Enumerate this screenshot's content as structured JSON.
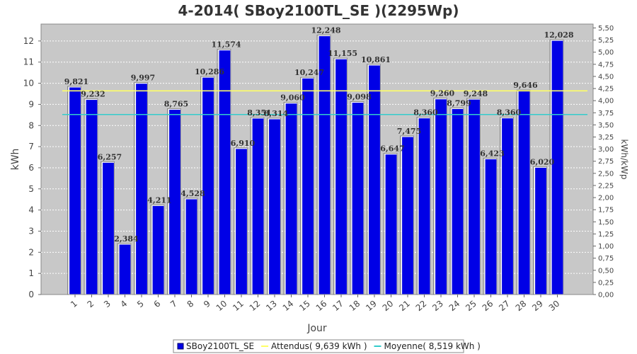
{
  "chart_data": {
    "type": "bar",
    "title": "4-2014( SBoy2100TL_SE )(2295Wp)",
    "xlabel": "Jour",
    "ylabel": "kWh",
    "ylabel_right": "kWh/kWp",
    "ylim": [
      0,
      12.8
    ],
    "yticks": [
      "0",
      "1",
      "2",
      "3",
      "4",
      "5",
      "6",
      "7",
      "8",
      "9",
      "10",
      "11",
      "12"
    ],
    "ylim_right": [
      0,
      5.58
    ],
    "yticks_right": [
      "0,00",
      "0,25",
      "0,50",
      "0,75",
      "1,00",
      "1,25",
      "1,50",
      "1,75",
      "2,00",
      "2,25",
      "2,50",
      "2,75",
      "3,00",
      "3,25",
      "3,50",
      "3,75",
      "4,00",
      "4,25",
      "4,50",
      "4,75",
      "5,00",
      "5,25",
      "5,50"
    ],
    "categories": [
      "1",
      "2",
      "3",
      "4",
      "5",
      "6",
      "7",
      "8",
      "9",
      "10",
      "11",
      "12",
      "13",
      "14",
      "15",
      "16",
      "17",
      "18",
      "19",
      "20",
      "21",
      "22",
      "23",
      "24",
      "25",
      "26",
      "27",
      "28",
      "29",
      "30"
    ],
    "series": [
      {
        "name": "SBoy2100TL_SE",
        "color": "#0000e6",
        "values": [
          9.821,
          9.232,
          6.257,
          2.384,
          9.997,
          4.211,
          8.765,
          4.528,
          10.286,
          11.574,
          6.91,
          8.351,
          8.314,
          9.06,
          10.247,
          12.248,
          11.155,
          9.098,
          10.861,
          6.647,
          7.475,
          8.36,
          9.26,
          8.799,
          9.248,
          6.423,
          8.36,
          9.646,
          6.02,
          12.028
        ],
        "labels": [
          "9,821",
          "9,232",
          "6,257",
          "2,384",
          "9,997",
          "4,211",
          "8,765",
          "4,528",
          "10,286",
          "11,574",
          "6,910",
          "8,351",
          "8,314",
          "9,060",
          "10,247",
          "12,248",
          "11,155",
          "9,098",
          "10,861",
          "6,647",
          "7,475",
          "8,360",
          "9,260",
          "8,799",
          "9,248",
          "6,423",
          "8,360",
          "9,646",
          "6,020",
          "12,028"
        ]
      }
    ],
    "reference_lines": [
      {
        "name": "Attendus",
        "value": 9.639,
        "color": "#ffff66"
      },
      {
        "name": "Moyenne",
        "value": 8.519,
        "color": "#33cccc"
      }
    ],
    "legend": [
      {
        "text": "SBoy2100TL_SE",
        "color": "#0000e6",
        "kind": "box"
      },
      {
        "text": "Attendus( 9,639 kWh )",
        "color": "#ffff66",
        "kind": "line"
      },
      {
        "text": "Moyenne( 8,519 kWh )",
        "color": "#33cccc",
        "kind": "line"
      }
    ],
    "legend_position": "bottom",
    "grid": true,
    "plot_background": "#c8c8c8"
  }
}
